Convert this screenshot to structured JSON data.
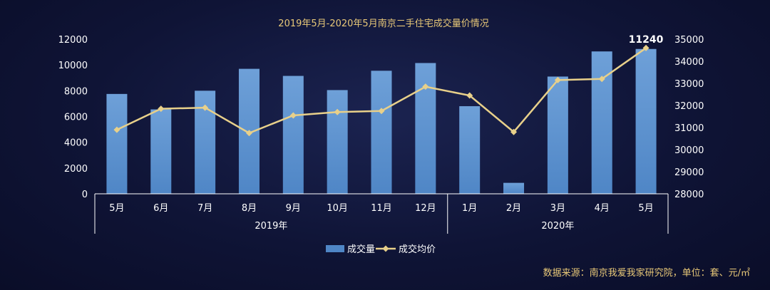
{
  "chart_data": {
    "type": "bar",
    "title": "2019年5月-2020年5月南京二手住宅成交量价情况",
    "categories": [
      "5月",
      "6月",
      "7月",
      "8月",
      "9月",
      "10月",
      "11月",
      "12月",
      "1月",
      "2月",
      "3月",
      "4月",
      "5月"
    ],
    "groups": [
      {
        "label": "2019年",
        "start": 0,
        "end": 7
      },
      {
        "label": "2020年",
        "start": 8,
        "end": 12
      }
    ],
    "series": [
      {
        "name": "成交量",
        "type": "bar",
        "axis": "left",
        "color": "#4f86c6",
        "values": [
          7750,
          6550,
          8000,
          9700,
          9150,
          8050,
          9550,
          10150,
          6800,
          850,
          9100,
          11050,
          11240
        ]
      },
      {
        "name": "成交均价",
        "type": "line",
        "axis": "right",
        "color": "#e8d08a",
        "values": [
          30900,
          31850,
          31900,
          30750,
          31550,
          31700,
          31750,
          32850,
          32450,
          30800,
          33150,
          33200,
          34600
        ]
      }
    ],
    "y_left": {
      "min": 0,
      "max": 12000,
      "ticks": [
        "0",
        "2000",
        "4000",
        "6000",
        "8000",
        "10000",
        "12000"
      ]
    },
    "y_right": {
      "min": 28000,
      "max": 35000,
      "ticks": [
        "28000",
        "29000",
        "30000",
        "31000",
        "32000",
        "33000",
        "34000",
        "35000"
      ]
    },
    "annotation": {
      "label": "11240",
      "category_index": 12
    },
    "legend": {
      "position": "bottom",
      "items": [
        "成交量",
        "成交均价"
      ]
    },
    "grid": false
  },
  "source_note": "数据来源：南京我爱我家研究院，单位：套、元/㎡"
}
